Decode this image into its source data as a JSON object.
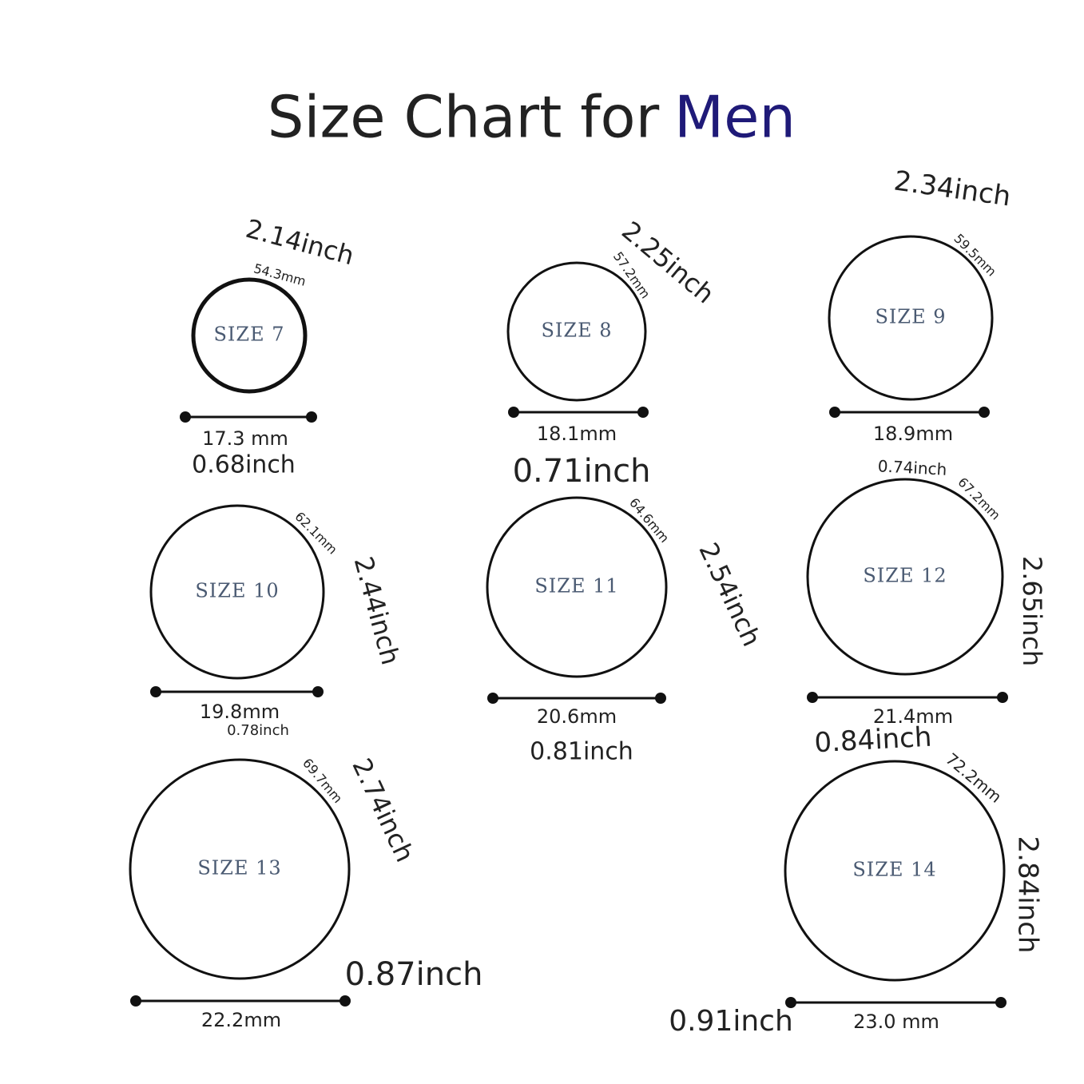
{
  "title": {
    "text": "Size Chart for",
    "highlight": "Men"
  },
  "rings": [
    {
      "size": "SIZE 7",
      "circumference_mm": "54.3mm",
      "circumference_inch": "2.14inch",
      "diameter_mm": "17.3 mm",
      "diameter_inch": "0.68inch"
    },
    {
      "size": "SIZE 8",
      "circumference_mm": "57.2mm",
      "circumference_inch": "2.25inch",
      "diameter_mm": "18.1mm",
      "diameter_inch": "0.71inch"
    },
    {
      "size": "SIZE 9",
      "circumference_mm": "59.5mm",
      "circumference_inch": "2.34inch",
      "diameter_mm": "18.9mm",
      "diameter_inch": "0.74inch"
    },
    {
      "size": "SIZE 10",
      "circumference_mm": "62.1mm",
      "circumference_inch": "2.44inch",
      "diameter_mm": "19.8mm",
      "diameter_inch": "0.78inch"
    },
    {
      "size": "SIZE 11",
      "circumference_mm": "64.6mm",
      "circumference_inch": "2.54inch",
      "diameter_mm": "20.6mm",
      "diameter_inch": "0.81inch"
    },
    {
      "size": "SIZE 12",
      "circumference_mm": "67.2mm",
      "circumference_inch": "2.65inch",
      "diameter_mm": "21.4mm",
      "diameter_inch": "0.84inch"
    },
    {
      "size": "SIZE 13",
      "circumference_mm": "69.7mm",
      "circumference_inch": "2.74inch",
      "diameter_mm": "22.2mm",
      "diameter_inch": "0.87inch"
    },
    {
      "size": "SIZE 14",
      "circumference_mm": "72.2mm",
      "circumference_inch": "2.84inch",
      "diameter_mm": "23.0 mm",
      "diameter_inch": "0.91inch"
    }
  ]
}
